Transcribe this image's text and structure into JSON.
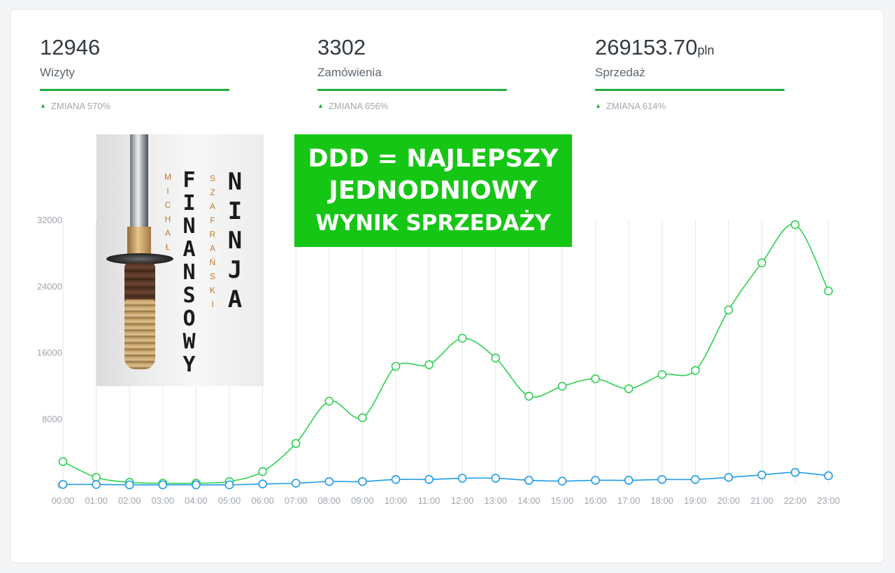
{
  "stats": [
    {
      "value": "12946",
      "unit": "",
      "label": "Wizyty",
      "change": "ZMIANA 570%"
    },
    {
      "value": "3302",
      "unit": "",
      "label": "Zamówienia",
      "change": "ZMIANA 656%"
    },
    {
      "value": "269153.70",
      "unit": "pln",
      "label": "Sprzedaż",
      "change": "ZMIANA 614%"
    }
  ],
  "banner": {
    "line1": "DDD = NAJLEPSZY",
    "line2": "JEDNODNIOWY",
    "line3": "WYNIK SPRZEDAŻY"
  },
  "book": {
    "author_first": "MICHAŁ",
    "author_last": "SZAFRAŃSKI",
    "title_1": "FINANSOWY",
    "title_2": "NINJA"
  },
  "colors": {
    "accent": "#1fae3c",
    "banner": "#16c614",
    "series_green": "#2ed052",
    "series_blue": "#1f9be6"
  },
  "chart_data": {
    "type": "line",
    "x": [
      "00:00",
      "01:00",
      "02:00",
      "03:00",
      "04:00",
      "05:00",
      "06:00",
      "07:00",
      "08:00",
      "09:00",
      "10:00",
      "11:00",
      "12:00",
      "13:00",
      "14:00",
      "15:00",
      "16:00",
      "17:00",
      "18:00",
      "19:00",
      "20:00",
      "21:00",
      "22:00",
      "23:00"
    ],
    "y_ticks": [
      0,
      8000,
      16000,
      24000,
      32000
    ],
    "ylim": [
      0,
      32000
    ],
    "grid": "vertical",
    "series": [
      {
        "color": "#2ed052",
        "values": [
          2800,
          900,
          300,
          200,
          200,
          400,
          1600,
          5000,
          10100,
          8100,
          14300,
          14500,
          17700,
          15300,
          10700,
          11900,
          12800,
          11600,
          13300,
          13800,
          21100,
          26800,
          31400,
          23400
        ]
      },
      {
        "color": "#1f9be6",
        "values": [
          50,
          50,
          0,
          0,
          0,
          0,
          100,
          200,
          400,
          400,
          650,
          650,
          800,
          800,
          550,
          450,
          550,
          550,
          650,
          650,
          900,
          1200,
          1500,
          1100
        ]
      }
    ]
  }
}
